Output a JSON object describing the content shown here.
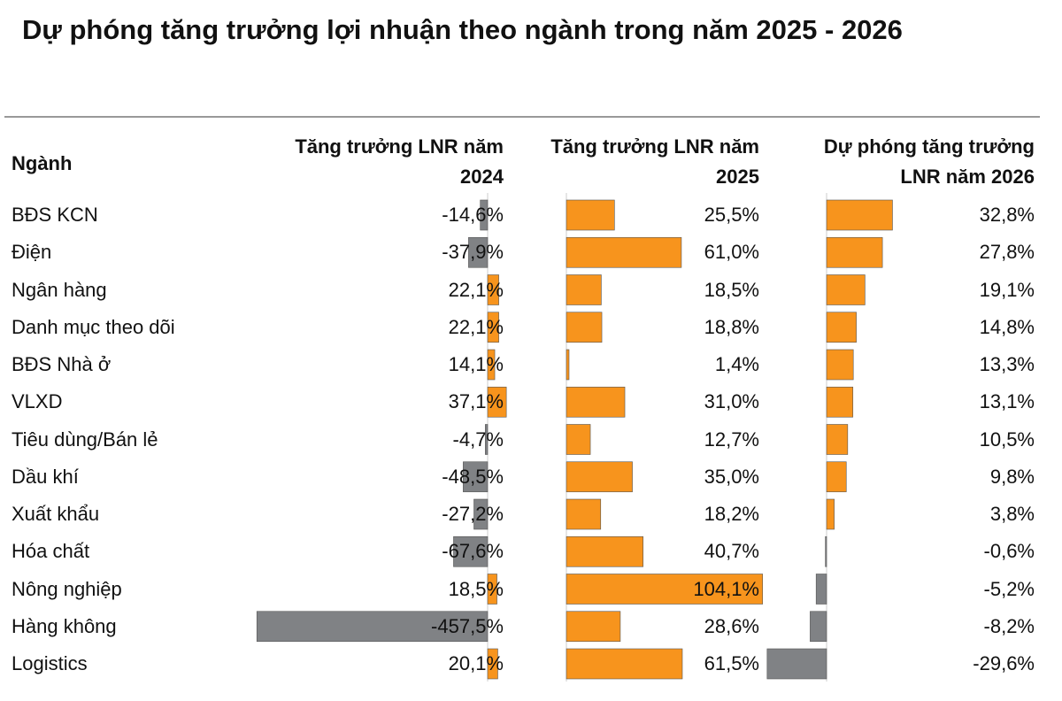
{
  "chart_data": {
    "type": "bar",
    "title": "Dự phóng tăng trưởng lợi nhuận theo ngành trong năm 2025 - 2026",
    "category_header": "Ngành",
    "categories": [
      "BĐS KCN",
      "Điện",
      "Ngân hàng",
      "Danh mục theo dõi",
      "BĐS Nhà ở",
      "VLXD",
      "Tiêu dùng/Bán lẻ",
      "Dầu khí",
      "Xuất khẩu",
      "Hóa chất",
      "Nông nghiệp",
      "Hàng không",
      "Logistics"
    ],
    "series": [
      {
        "name": "Tăng trưởng LNR năm 2024",
        "color": "#f7941d",
        "negative_color": "#808285",
        "values": [
          -14.6,
          -37.9,
          22.1,
          22.1,
          14.1,
          37.1,
          -4.7,
          -48.5,
          -27.2,
          -67.6,
          18.5,
          -457.5,
          20.1
        ],
        "value_labels": [
          "-14,6%",
          "-37,9%",
          "22,1%",
          "22,1%",
          "14,1%",
          "37,1%",
          "-4,7%",
          "-48,5%",
          "-27,2%",
          "-67,6%",
          "18,5%",
          "-457,5%",
          "20,1%"
        ]
      },
      {
        "name": "Tăng trưởng LNR năm 2025",
        "color": "#f7941d",
        "negative_color": "#808285",
        "values": [
          25.5,
          61.0,
          18.5,
          18.8,
          1.4,
          31.0,
          12.7,
          35.0,
          18.2,
          40.7,
          104.1,
          28.6,
          61.5
        ],
        "value_labels": [
          "25,5%",
          "61,0%",
          "18,5%",
          "18,8%",
          "1,4%",
          "31,0%",
          "12,7%",
          "35,0%",
          "18,2%",
          "40,7%",
          "104,1%",
          "28,6%",
          "61,5%"
        ]
      },
      {
        "name": "Dự phóng tăng trưởng LNR năm 2026",
        "color": "#f7941d",
        "negative_color": "#808285",
        "values": [
          32.8,
          27.8,
          19.1,
          14.8,
          13.3,
          13.1,
          10.5,
          9.8,
          3.8,
          -0.6,
          -5.2,
          -8.2,
          -29.6
        ],
        "value_labels": [
          "32,8%",
          "27,8%",
          "19,1%",
          "14,8%",
          "13,3%",
          "13,1%",
          "10,5%",
          "9,8%",
          "3,8%",
          "-0,6%",
          "-5,2%",
          "-8,2%",
          "-29,6%"
        ]
      }
    ]
  }
}
